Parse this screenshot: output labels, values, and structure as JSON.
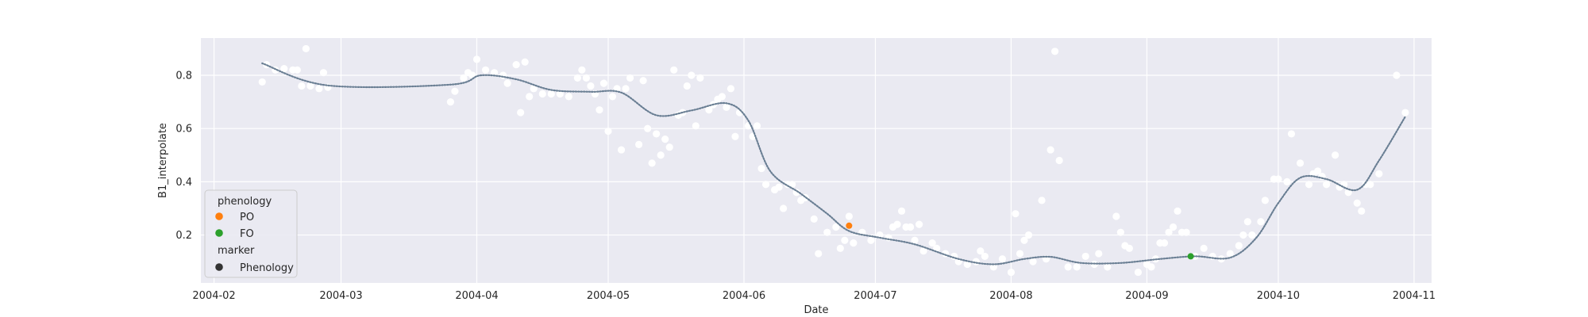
{
  "chart_data": {
    "type": "line",
    "xlabel": "Date",
    "ylabel": "B1_interpolate",
    "x_ticks": [
      "2004-02",
      "2004-03",
      "2004-04",
      "2004-05",
      "2004-06",
      "2004-07",
      "2004-08",
      "2004-09",
      "2004-10",
      "2004-11"
    ],
    "x_tick_dates": [
      "2004-02-01",
      "2004-03-01",
      "2004-04-01",
      "2004-05-01",
      "2004-06-01",
      "2004-07-01",
      "2004-08-01",
      "2004-09-01",
      "2004-10-01",
      "2004-11-01"
    ],
    "y_ticks": [
      0.2,
      0.4,
      0.6,
      0.8
    ],
    "xlim": [
      "2004-01-29",
      "2004-11-05"
    ],
    "ylim": [
      0.02,
      0.94
    ],
    "grid": true,
    "colors": {
      "background": "#eaeaf2",
      "grid": "#ffffff",
      "line": "#4c5d6e",
      "line_dots": "#6a7f94",
      "scatter": "#ffffff",
      "PO": "#ff7f0e",
      "FO": "#2ca02c",
      "marker": "#333333"
    },
    "scatter": [
      [
        "2004-02-12",
        0.775
      ],
      [
        "2004-02-13",
        0.84
      ],
      [
        "2004-02-15",
        0.82
      ],
      [
        "2004-02-17",
        0.825
      ],
      [
        "2004-02-19",
        0.82
      ],
      [
        "2004-02-20",
        0.82
      ],
      [
        "2004-02-21",
        0.76
      ],
      [
        "2004-02-22",
        0.9
      ],
      [
        "2004-02-23",
        0.76
      ],
      [
        "2004-02-25",
        0.75
      ],
      [
        "2004-02-26",
        0.81
      ],
      [
        "2004-02-27",
        0.755
      ],
      [
        "2004-03-26",
        0.7
      ],
      [
        "2004-03-27",
        0.74
      ],
      [
        "2004-03-29",
        0.79
      ],
      [
        "2004-03-30",
        0.81
      ],
      [
        "2004-03-31",
        0.8
      ],
      [
        "2004-04-01",
        0.86
      ],
      [
        "2004-04-03",
        0.82
      ],
      [
        "2004-04-05",
        0.81
      ],
      [
        "2004-04-07",
        0.8
      ],
      [
        "2004-04-08",
        0.77
      ],
      [
        "2004-04-10",
        0.84
      ],
      [
        "2004-04-11",
        0.66
      ],
      [
        "2004-04-12",
        0.85
      ],
      [
        "2004-04-13",
        0.72
      ],
      [
        "2004-04-14",
        0.75
      ],
      [
        "2004-04-16",
        0.73
      ],
      [
        "2004-04-18",
        0.73
      ],
      [
        "2004-04-20",
        0.73
      ],
      [
        "2004-04-22",
        0.72
      ],
      [
        "2004-04-24",
        0.79
      ],
      [
        "2004-04-25",
        0.82
      ],
      [
        "2004-04-26",
        0.79
      ],
      [
        "2004-04-27",
        0.76
      ],
      [
        "2004-04-28",
        0.73
      ],
      [
        "2004-04-29",
        0.67
      ],
      [
        "2004-04-30",
        0.77
      ],
      [
        "2004-05-01",
        0.59
      ],
      [
        "2004-05-02",
        0.72
      ],
      [
        "2004-05-03",
        0.75
      ],
      [
        "2004-05-04",
        0.52
      ],
      [
        "2004-05-05",
        0.75
      ],
      [
        "2004-05-06",
        0.79
      ],
      [
        "2004-05-08",
        0.54
      ],
      [
        "2004-05-09",
        0.78
      ],
      [
        "2004-05-10",
        0.6
      ],
      [
        "2004-05-11",
        0.47
      ],
      [
        "2004-05-12",
        0.58
      ],
      [
        "2004-05-13",
        0.5
      ],
      [
        "2004-05-14",
        0.56
      ],
      [
        "2004-05-15",
        0.53
      ],
      [
        "2004-05-16",
        0.82
      ],
      [
        "2004-05-17",
        0.65
      ],
      [
        "2004-05-18",
        0.66
      ],
      [
        "2004-05-19",
        0.76
      ],
      [
        "2004-05-20",
        0.8
      ],
      [
        "2004-05-21",
        0.61
      ],
      [
        "2004-05-22",
        0.79
      ],
      [
        "2004-05-24",
        0.67
      ],
      [
        "2004-05-25",
        0.69
      ],
      [
        "2004-05-26",
        0.71
      ],
      [
        "2004-05-27",
        0.72
      ],
      [
        "2004-05-28",
        0.68
      ],
      [
        "2004-05-29",
        0.75
      ],
      [
        "2004-05-30",
        0.57
      ],
      [
        "2004-05-31",
        0.66
      ],
      [
        "2004-06-02",
        0.61
      ],
      [
        "2004-06-03",
        0.57
      ],
      [
        "2004-06-04",
        0.61
      ],
      [
        "2004-06-05",
        0.45
      ],
      [
        "2004-06-06",
        0.39
      ],
      [
        "2004-06-08",
        0.37
      ],
      [
        "2004-06-09",
        0.38
      ],
      [
        "2004-06-10",
        0.3
      ],
      [
        "2004-06-11",
        0.39
      ],
      [
        "2004-06-12",
        0.39
      ],
      [
        "2004-06-13",
        0.36
      ],
      [
        "2004-06-14",
        0.33
      ],
      [
        "2004-06-15",
        0.34
      ],
      [
        "2004-06-17",
        0.26
      ],
      [
        "2004-06-18",
        0.13
      ],
      [
        "2004-06-20",
        0.21
      ],
      [
        "2004-06-22",
        0.23
      ],
      [
        "2004-06-23",
        0.15
      ],
      [
        "2004-06-24",
        0.18
      ],
      [
        "2004-06-25",
        0.27
      ],
      [
        "2004-06-26",
        0.17
      ],
      [
        "2004-06-28",
        0.21
      ],
      [
        "2004-06-30",
        0.18
      ],
      [
        "2004-07-02",
        0.2
      ],
      [
        "2004-07-04",
        0.19
      ],
      [
        "2004-07-05",
        0.23
      ],
      [
        "2004-07-06",
        0.24
      ],
      [
        "2004-07-07",
        0.29
      ],
      [
        "2004-07-08",
        0.23
      ],
      [
        "2004-07-09",
        0.23
      ],
      [
        "2004-07-10",
        0.18
      ],
      [
        "2004-07-11",
        0.24
      ],
      [
        "2004-07-12",
        0.14
      ],
      [
        "2004-07-14",
        0.17
      ],
      [
        "2004-07-15",
        0.15
      ],
      [
        "2004-07-17",
        0.13
      ],
      [
        "2004-07-19",
        0.12
      ],
      [
        "2004-07-20",
        0.1
      ],
      [
        "2004-07-22",
        0.09
      ],
      [
        "2004-07-24",
        0.1
      ],
      [
        "2004-07-25",
        0.14
      ],
      [
        "2004-07-26",
        0.12
      ],
      [
        "2004-07-28",
        0.08
      ],
      [
        "2004-07-30",
        0.11
      ],
      [
        "2004-08-01",
        0.06
      ],
      [
        "2004-08-02",
        0.28
      ],
      [
        "2004-08-03",
        0.13
      ],
      [
        "2004-08-04",
        0.18
      ],
      [
        "2004-08-05",
        0.2
      ],
      [
        "2004-08-06",
        0.1
      ],
      [
        "2004-08-08",
        0.33
      ],
      [
        "2004-08-09",
        0.11
      ],
      [
        "2004-08-10",
        0.52
      ],
      [
        "2004-08-11",
        0.89
      ],
      [
        "2004-08-12",
        0.48
      ],
      [
        "2004-08-14",
        0.08
      ],
      [
        "2004-08-16",
        0.08
      ],
      [
        "2004-08-18",
        0.12
      ],
      [
        "2004-08-20",
        0.09
      ],
      [
        "2004-08-21",
        0.13
      ],
      [
        "2004-08-23",
        0.08
      ],
      [
        "2004-08-25",
        0.27
      ],
      [
        "2004-08-26",
        0.21
      ],
      [
        "2004-08-27",
        0.16
      ],
      [
        "2004-08-28",
        0.15
      ],
      [
        "2004-08-30",
        0.06
      ],
      [
        "2004-09-01",
        0.09
      ],
      [
        "2004-09-02",
        0.08
      ],
      [
        "2004-09-03",
        0.11
      ],
      [
        "2004-09-04",
        0.17
      ],
      [
        "2004-09-05",
        0.17
      ],
      [
        "2004-09-06",
        0.21
      ],
      [
        "2004-09-07",
        0.23
      ],
      [
        "2004-09-08",
        0.29
      ],
      [
        "2004-09-09",
        0.21
      ],
      [
        "2004-09-10",
        0.21
      ],
      [
        "2004-09-12",
        0.12
      ],
      [
        "2004-09-14",
        0.15
      ],
      [
        "2004-09-16",
        0.12
      ],
      [
        "2004-09-18",
        0.11
      ],
      [
        "2004-09-20",
        0.13
      ],
      [
        "2004-09-22",
        0.16
      ],
      [
        "2004-09-23",
        0.2
      ],
      [
        "2004-09-24",
        0.25
      ],
      [
        "2004-09-25",
        0.2
      ],
      [
        "2004-09-27",
        0.25
      ],
      [
        "2004-09-28",
        0.33
      ],
      [
        "2004-09-30",
        0.41
      ],
      [
        "2004-10-01",
        0.41
      ],
      [
        "2004-10-03",
        0.4
      ],
      [
        "2004-10-04",
        0.58
      ],
      [
        "2004-10-06",
        0.47
      ],
      [
        "2004-10-08",
        0.39
      ],
      [
        "2004-10-09",
        0.43
      ],
      [
        "2004-10-10",
        0.44
      ],
      [
        "2004-10-11",
        0.42
      ],
      [
        "2004-10-12",
        0.39
      ],
      [
        "2004-10-14",
        0.5
      ],
      [
        "2004-10-15",
        0.38
      ],
      [
        "2004-10-16",
        0.39
      ],
      [
        "2004-10-17",
        0.36
      ],
      [
        "2004-10-19",
        0.32
      ],
      [
        "2004-10-20",
        0.29
      ],
      [
        "2004-10-21",
        0.39
      ],
      [
        "2004-10-22",
        0.39
      ],
      [
        "2004-10-24",
        0.43
      ],
      [
        "2004-10-28",
        0.8
      ],
      [
        "2004-10-30",
        0.66
      ]
    ],
    "line": [
      [
        "2004-02-12",
        0.845
      ],
      [
        "2004-02-27",
        0.762
      ],
      [
        "2004-03-26",
        0.765
      ],
      [
        "2004-04-02",
        0.8
      ],
      [
        "2004-04-10",
        0.785
      ],
      [
        "2004-04-18",
        0.745
      ],
      [
        "2004-04-27",
        0.738
      ],
      [
        "2004-05-04",
        0.735
      ],
      [
        "2004-05-12",
        0.65
      ],
      [
        "2004-05-20",
        0.668
      ],
      [
        "2004-05-28",
        0.695
      ],
      [
        "2004-06-02",
        0.63
      ],
      [
        "2004-06-07",
        0.44
      ],
      [
        "2004-06-14",
        0.355
      ],
      [
        "2004-06-20",
        0.28
      ],
      [
        "2004-06-25",
        0.215
      ],
      [
        "2004-07-02",
        0.19
      ],
      [
        "2004-07-10",
        0.165
      ],
      [
        "2004-07-20",
        0.11
      ],
      [
        "2004-07-28",
        0.09
      ],
      [
        "2004-08-04",
        0.11
      ],
      [
        "2004-08-10",
        0.118
      ],
      [
        "2004-08-17",
        0.095
      ],
      [
        "2004-08-26",
        0.095
      ],
      [
        "2004-09-04",
        0.11
      ],
      [
        "2004-09-12",
        0.12
      ],
      [
        "2004-09-20",
        0.115
      ],
      [
        "2004-09-26",
        0.19
      ],
      [
        "2004-10-01",
        0.32
      ],
      [
        "2004-10-06",
        0.415
      ],
      [
        "2004-10-12",
        0.41
      ],
      [
        "2004-10-19",
        0.37
      ],
      [
        "2004-10-24",
        0.48
      ],
      [
        "2004-10-30",
        0.645
      ]
    ],
    "phenology_points": [
      {
        "label": "PO",
        "date": "2004-06-25",
        "value": 0.235
      },
      {
        "label": "FO",
        "date": "2004-09-11",
        "value": 0.12
      }
    ],
    "legend": {
      "position": "lower-left",
      "hue_title": "phenology",
      "hue_entries": [
        "PO",
        "FO"
      ],
      "style_title": "marker",
      "style_entries": [
        "Phenology"
      ]
    }
  }
}
